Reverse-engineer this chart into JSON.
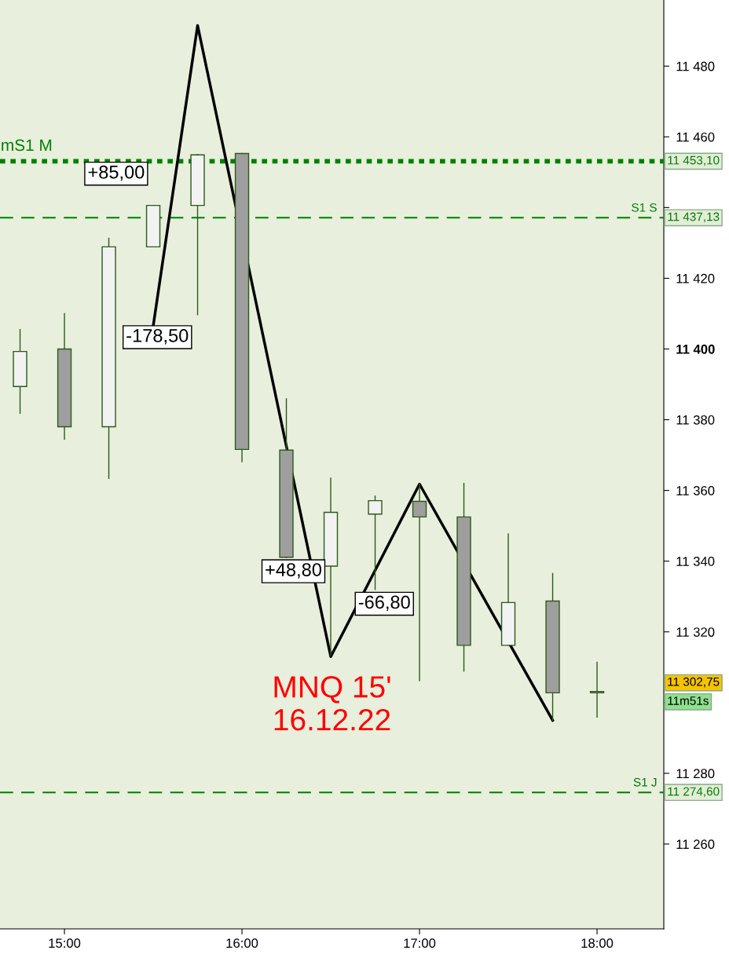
{
  "chart_data": {
    "type": "candlestick",
    "x": [
      14.75,
      15.0,
      15.25,
      15.5,
      15.75,
      16.0,
      16.25,
      16.5,
      16.75,
      17.0,
      17.25,
      17.5,
      17.75,
      18.0
    ],
    "ohlc": [
      [
        11389.4,
        11405.5,
        11381.8,
        11399.3
      ],
      [
        11400,
        11410,
        11374.5,
        11378
      ],
      [
        11378,
        11431.3,
        11363.4,
        11428.9
      ],
      [
        11428.9,
        11440.6,
        11428.9,
        11440.6
      ],
      [
        11440.6,
        11455,
        11409.7,
        11454.9
      ],
      [
        11455.3,
        11455.3,
        11368.1,
        11371.6
      ],
      [
        11371.4,
        11385.9,
        11341,
        11341.1
      ],
      [
        11338.6,
        11363.5,
        11313.3,
        11353.8
      ],
      [
        11353.3,
        11358.4,
        11332,
        11357.1
      ],
      [
        11356.9,
        11361.7,
        11306.2,
        11352.5
      ],
      [
        11352.5,
        11362,
        11308.9,
        11316.2
      ],
      [
        11316.2,
        11347.7,
        11316.2,
        11328.3
      ],
      [
        11328.7,
        11336.5,
        11295,
        11302.75
      ],
      [
        11302.75,
        11311.4,
        11295.9,
        11302.75
      ]
    ],
    "colors": [
      "#f2f2f2",
      "#9e9e9e",
      "#f2f2f2",
      "#f2f2f2",
      "#f2f2f2",
      "#9e9e9e",
      "#9e9e9e",
      "#f2f2f2",
      "#f2f2f2",
      "#9e9e9e",
      "#9e9e9e",
      "#f2f2f2",
      "#9e9e9e",
      "#9e9e9e"
    ],
    "series": [
      {
        "type": "line",
        "color": "#000000",
        "x": [
          15.5,
          15.75,
          16.5,
          17.0,
          17.75
        ],
        "values": [
          11406.5,
          11491.5,
          11313,
          11361.8,
          11295
        ]
      }
    ],
    "xlim": [
      14.637,
      18.376
    ],
    "xticks": [
      {
        "value": 15,
        "label": "15:00"
      },
      {
        "value": 16,
        "label": "16:00"
      },
      {
        "value": 17,
        "label": "17:00"
      },
      {
        "value": 18,
        "label": "18:00"
      }
    ],
    "ylim": [
      11236,
      11498.7
    ],
    "yticks": [
      {
        "value": 11260,
        "label": "11 260"
      },
      {
        "value": 11280,
        "label": "11 280"
      },
      {
        "value": 11300,
        "label": null
      },
      {
        "value": 11320,
        "label": "11 320"
      },
      {
        "value": 11340,
        "label": "11 340"
      },
      {
        "value": 11360,
        "label": "11 360"
      },
      {
        "value": 11380,
        "label": "11 380"
      },
      {
        "value": 11400,
        "label": "11 400"
      },
      {
        "value": 11420,
        "label": "11 420"
      },
      {
        "value": 11440,
        "label": null
      },
      {
        "value": 11460,
        "label": "11 460"
      },
      {
        "value": 11480,
        "label": "11 480"
      }
    ],
    "ref_lines": [
      {
        "axis": "y",
        "value": 11453.1,
        "label": "mS1 M",
        "color": "#008000",
        "line_style": "dotted"
      },
      {
        "axis": "y",
        "value": 11437.13,
        "label": "S1 S",
        "color": "#008000",
        "line_style": "dashed"
      },
      {
        "axis": "y",
        "value": 11274.6,
        "label": "S1 J",
        "color": "#008000",
        "line_style": "dashed"
      }
    ],
    "annotations": [
      "+85,00",
      "-178,50",
      "+48,80",
      "-66,80",
      "11 453,10",
      "11 437,13",
      "11 274,60",
      "11 302,75",
      "11m51s",
      "MNQ 15'\n16.12.22"
    ],
    "grid": false,
    "legend": false
  }
}
